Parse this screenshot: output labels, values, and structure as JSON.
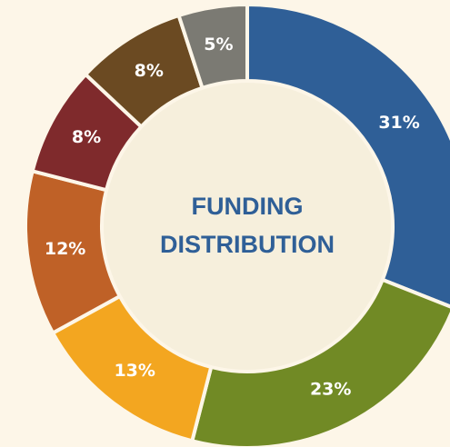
{
  "chart_data": {
    "type": "donut",
    "center_label": [
      "FUNDING",
      "DISTRIBUTION"
    ],
    "values": [
      31,
      23,
      13,
      12,
      8,
      8,
      5
    ],
    "value_labels": [
      "31%",
      "23%",
      "13%",
      "12%",
      "8%",
      "8%",
      "5%"
    ],
    "colors": [
      "#2f5f97",
      "#718a25",
      "#f3a620",
      "#bf6127",
      "#7f2a2c",
      "#6b4a22",
      "#7b7a73"
    ]
  }
}
